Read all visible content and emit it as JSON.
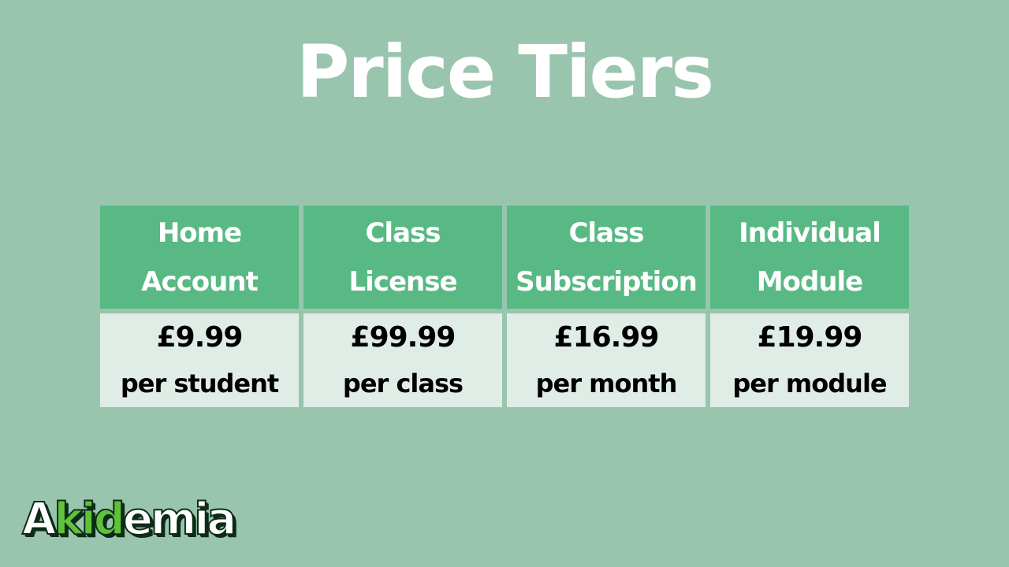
{
  "title": "Price Tiers",
  "tiers": [
    {
      "name_line1": "Home",
      "name_line2": "Account",
      "price": "£9.99",
      "unit": "per student"
    },
    {
      "name_line1": "Class",
      "name_line2": "License",
      "price": "£99.99",
      "unit": "per class"
    },
    {
      "name_line1": "Class",
      "name_line2": "Subscription",
      "price": "£16.99",
      "unit": "per month"
    },
    {
      "name_line1": "Individual",
      "name_line2": "Module",
      "price": "£19.99",
      "unit": "per module"
    }
  ],
  "logo": {
    "part1": "A",
    "part2": "kid",
    "part3": "emia"
  },
  "colors": {
    "background": "#99c5ae",
    "header": "#58b984",
    "cell": "#e0ece6",
    "logo_accent": "#5ec23a"
  }
}
